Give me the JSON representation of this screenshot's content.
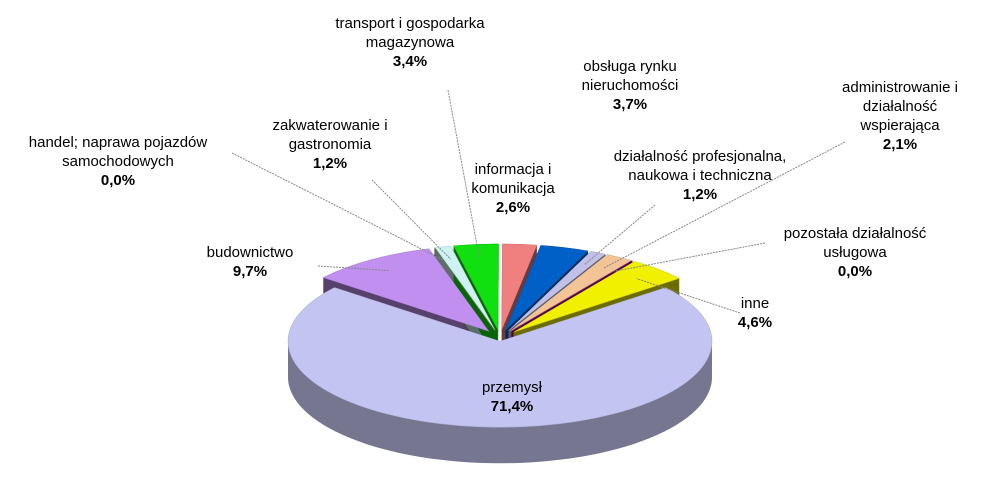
{
  "chart_data": {
    "type": "pie",
    "categories": [
      "przemysł",
      "budownictwo",
      "handel; naprawa pojazdów samochodowych",
      "zakwaterowanie i gastronomia",
      "transport i gospodarka magazynowa",
      "informacja i komunikacja",
      "obsługa rynku nieruchomości",
      "działalność profesjonalna, naukowa i techniczna",
      "administrowanie i działalność wspierająca",
      "pozostała działalność usługowa",
      "inne"
    ],
    "values": [
      71.4,
      9.7,
      0.0,
      1.2,
      3.4,
      2.6,
      3.7,
      1.2,
      2.1,
      0.0,
      4.6
    ],
    "value_labels": [
      "71,4%",
      "9,7%",
      "0,0%",
      "1,2%",
      "3,4%",
      "2,6%",
      "3,7%",
      "1,2%",
      "2,1%",
      "0,0%",
      "4,6%"
    ],
    "colors": [
      "#c4c4f2",
      "#c08ff0",
      "#808040",
      "#ccf2f2",
      "#10e010",
      "#f08080",
      "#0060c8",
      "#c0c0e8",
      "#f2c496",
      "#a000a0",
      "#f0f000"
    ]
  }
}
